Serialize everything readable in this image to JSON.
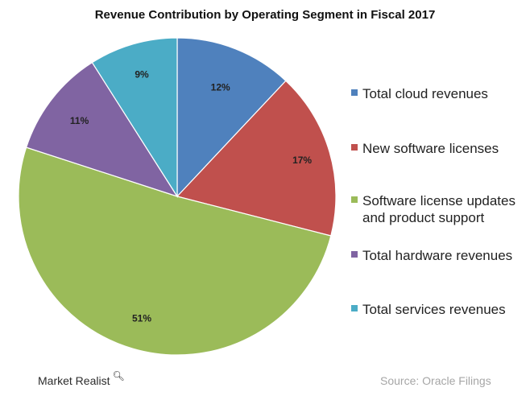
{
  "chart_data": {
    "type": "pie",
    "title": "Revenue Contribution by Operating Segment in Fiscal 2017",
    "slices": [
      {
        "name": "Total cloud revenues",
        "value": 12,
        "label": "12%",
        "color": "#4f81bd"
      },
      {
        "name": "New software licenses",
        "value": 17,
        "label": "17%",
        "color": "#c0504d"
      },
      {
        "name": "Software license updates and product support",
        "value": 51,
        "label": "51%",
        "color": "#9bbb59"
      },
      {
        "name": "Total hardware revenues",
        "value": 11,
        "label": "11%",
        "color": "#8064a2"
      },
      {
        "name": "Total services revenues",
        "value": 9,
        "label": "9%",
        "color": "#4bacc6"
      }
    ],
    "legend_position": "right",
    "start_angle": "12 o'clock",
    "direction": "clockwise"
  },
  "footer": {
    "brand": "Market Realist",
    "brand_icon": "magnifier-icon",
    "source": "Source:  Oracle Filings"
  }
}
